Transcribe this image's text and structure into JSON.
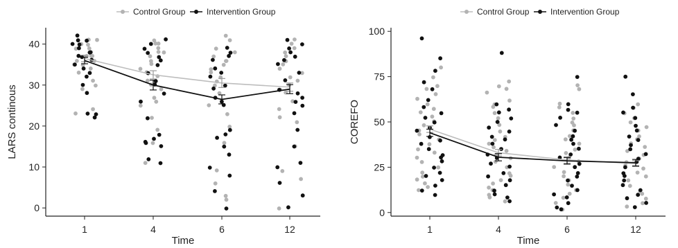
{
  "chart_data": [
    {
      "type": "scatter",
      "panel": "left",
      "xlabel": "Time",
      "ylabel": "LARS continous",
      "categories": [
        "1",
        "4",
        "6",
        "12"
      ],
      "ylim": [
        -2,
        44
      ],
      "yticks": [
        0,
        10,
        20,
        30,
        40
      ],
      "grid": false,
      "legend_position": "top",
      "series": [
        {
          "name": "Control Group",
          "color": "#b3b3b3",
          "means": [
            36.5,
            32.5,
            30.5,
            29.5
          ],
          "se": [
            0.8,
            1.0,
            1.1,
            1.0
          ],
          "points": [
            [
              41,
              40,
              39,
              39,
              38,
              38,
              37,
              37,
              36,
              36,
              35,
              34,
              33,
              30,
              29,
              24,
              23,
              40,
              41,
              37,
              35,
              31
            ],
            [
              41,
              40,
              40,
              39,
              38,
              37,
              36,
              35,
              33,
              32,
              31,
              30,
              29,
              27,
              26,
              25,
              22,
              19,
              16,
              11,
              38,
              34
            ],
            [
              42,
              41,
              39,
              38,
              37,
              36,
              35,
              34,
              33,
              32,
              31,
              30,
              28,
              25,
              23,
              20,
              16,
              9,
              6,
              3,
              2,
              36
            ],
            [
              41,
              40,
              39,
              38,
              37,
              35,
              34,
              33,
              32,
              31,
              30,
              29,
              28,
              26,
              24,
              22,
              21,
              15,
              9,
              7,
              0,
              36
            ]
          ]
        },
        {
          "name": "Intervention Group",
          "color": "#111111",
          "means": [
            36,
            30,
            26.5,
            29
          ],
          "se": [
            0.8,
            1.2,
            1.1,
            1.1
          ],
          "points": [
            [
              42,
              41,
              41,
              40,
              39,
              38,
              38,
              37,
              36,
              35,
              34,
              33,
              32,
              30,
              28,
              23,
              23,
              22,
              40,
              37
            ],
            [
              41,
              40,
              39,
              38,
              37,
              36,
              35,
              33,
              31,
              30,
              28,
              26,
              22,
              18,
              17,
              16,
              16,
              15,
              12,
              11
            ],
            [
              39,
              38,
              37,
              36,
              34,
              33,
              32,
              30,
              29,
              27,
              26,
              25,
              19,
              18,
              17,
              15,
              13,
              10,
              8,
              4,
              0
            ],
            [
              41,
              40,
              39,
              38,
              37,
              36,
              35,
              33,
              31,
              29,
              28,
              27,
              26,
              25,
              23,
              19,
              15,
              11,
              10,
              6,
              3,
              0
            ]
          ]
        }
      ]
    },
    {
      "type": "scatter",
      "panel": "right",
      "xlabel": "Time",
      "ylabel": "COREFO",
      "categories": [
        "1",
        "4",
        "6",
        "12"
      ],
      "ylim": [
        -2,
        102
      ],
      "yticks": [
        0,
        25,
        50,
        75,
        100
      ],
      "grid": false,
      "legend_position": "top",
      "series": [
        {
          "name": "Control Group",
          "color": "#b3b3b3",
          "means": [
            46,
            33,
            29,
            27
          ],
          "se": [
            1.8,
            1.8,
            1.8,
            1.6
          ],
          "points": [
            [
              80,
              75,
              70,
              68,
              65,
              63,
              60,
              57,
              55,
              53,
              50,
              48,
              45,
              43,
              40,
              38,
              35,
              33,
              30,
              28,
              25,
              22,
              20,
              18,
              16,
              14,
              12
            ],
            [
              72,
              70,
              68,
              66,
              62,
              60,
              58,
              55,
              52,
              50,
              48,
              45,
              42,
              40,
              38,
              36,
              34,
              32,
              30,
              28,
              25,
              22,
              20,
              18,
              16,
              14,
              12,
              10,
              8,
              6
            ],
            [
              70,
              68,
              60,
              58,
              55,
              52,
              50,
              48,
              45,
              42,
              40,
              38,
              35,
              33,
              30,
              28,
              25,
              22,
              20,
              18,
              15,
              12,
              10,
              8,
              5,
              2
            ],
            [
              60,
              58,
              55,
              52,
              50,
              47,
              45,
              42,
              40,
              38,
              36,
              34,
              32,
              30,
              28,
              26,
              24,
              22,
              20,
              18,
              15,
              12,
              10,
              8,
              5,
              3
            ]
          ]
        },
        {
          "name": "Intervention Group",
          "color": "#111111",
          "means": [
            44,
            30.5,
            28.5,
            27.5
          ],
          "se": [
            2.0,
            2.0,
            1.8,
            1.8
          ],
          "points": [
            [
              96,
              85,
              78,
              72,
              68,
              62,
              58,
              55,
              52,
              50,
              47,
              45,
              42,
              40,
              38,
              35,
              32,
              30,
              28,
              25,
              22,
              20,
              18,
              15,
              12,
              10
            ],
            [
              88,
              60,
              57,
              55,
              52,
              50,
              47,
              45,
              42,
              40,
              38,
              35,
              32,
              30,
              27,
              25,
              22,
              20,
              18,
              15,
              12,
              10,
              8,
              6
            ],
            [
              75,
              60,
              57,
              55,
              52,
              48,
              45,
              42,
              40,
              38,
              35,
              32,
              30,
              27,
              25,
              22,
              20,
              18,
              15,
              12,
              10,
              8,
              5,
              3,
              2
            ],
            [
              75,
              65,
              58,
              55,
              52,
              48,
              45,
              42,
              40,
              37,
              35,
              32,
              30,
              28,
              25,
              22,
              20,
              18,
              15,
              12,
              10,
              8,
              5,
              3
            ]
          ]
        }
      ]
    }
  ]
}
